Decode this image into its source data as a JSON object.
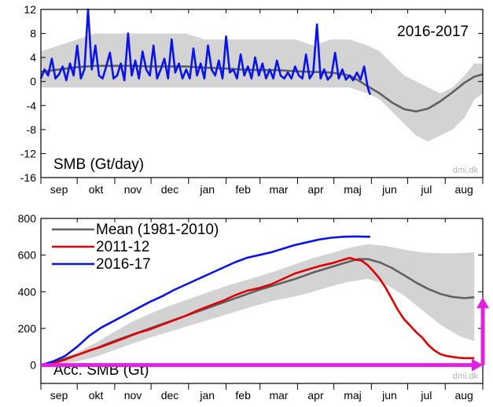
{
  "colors": {
    "band": "#d3d3d3",
    "mean": "#606060",
    "series_2011": "#e00000",
    "series_2016": "#0a14e6",
    "arrow": "#e022e0"
  },
  "chart_data": [
    {
      "type": "line",
      "title": "2016-2017",
      "ylabel": "SMB (Gt/day)",
      "watermark": "dmi.dk",
      "ylim": [
        -16,
        12
      ],
      "yticks": [
        -16,
        -12,
        -8,
        -4,
        0,
        4,
        8,
        12
      ],
      "months": [
        "sep",
        "okt",
        "nov",
        "dec",
        "jan",
        "feb",
        "mar",
        "apr",
        "maj",
        "jun",
        "jul",
        "aug"
      ],
      "x_unit": "day since 1 Sep",
      "xlim": [
        0,
        365
      ],
      "band": {
        "x": [
          0,
          15,
          30,
          45,
          60,
          75,
          90,
          105,
          120,
          135,
          150,
          165,
          180,
          195,
          210,
          225,
          240,
          255,
          270,
          280,
          290,
          300,
          310,
          320,
          330,
          340,
          350,
          358,
          365
        ],
        "upper": [
          5,
          6,
          7,
          8,
          8,
          8,
          8,
          8,
          8,
          7,
          7,
          7,
          7,
          7,
          7,
          6,
          7,
          7,
          6,
          5,
          3,
          1,
          0,
          -1,
          -2,
          -1,
          1,
          3,
          3
        ],
        "lower": [
          -1,
          -1,
          -1,
          -1,
          -1,
          -1,
          -1,
          -1,
          -1,
          -1,
          -1,
          -1,
          -1,
          -1,
          -1,
          -1,
          -1,
          -1,
          -2,
          -3,
          -5,
          -7,
          -9,
          -10,
          -9,
          -8,
          -6,
          -3,
          -2
        ]
      },
      "mean": {
        "x": [
          0,
          15,
          30,
          45,
          60,
          75,
          90,
          105,
          120,
          135,
          150,
          165,
          180,
          195,
          210,
          225,
          240,
          255,
          262,
          270,
          280,
          290,
          300,
          310,
          320,
          330,
          340,
          350,
          358,
          365
        ],
        "y": [
          1.6,
          2.0,
          2.4,
          2.6,
          2.6,
          2.6,
          2.5,
          2.5,
          2.5,
          2.3,
          2.2,
          2.0,
          1.9,
          1.9,
          1.7,
          1.6,
          1.5,
          1.0,
          0.2,
          -0.8,
          -2.0,
          -3.5,
          -4.6,
          -5.0,
          -4.5,
          -3.3,
          -1.8,
          -0.2,
          0.8,
          1.2
        ]
      },
      "series": [
        {
          "name": "2016-17",
          "x": [
            0,
            3,
            6,
            9,
            12,
            15,
            18,
            21,
            24,
            27,
            30,
            33,
            36,
            39,
            42,
            45,
            48,
            51,
            54,
            57,
            60,
            63,
            66,
            69,
            72,
            75,
            78,
            81,
            84,
            87,
            90,
            93,
            96,
            99,
            102,
            105,
            108,
            111,
            114,
            117,
            120,
            123,
            126,
            129,
            132,
            135,
            138,
            141,
            144,
            147,
            150,
            153,
            156,
            159,
            162,
            165,
            168,
            171,
            174,
            177,
            180,
            183,
            186,
            189,
            192,
            195,
            198,
            201,
            204,
            207,
            210,
            213,
            216,
            219,
            222,
            225,
            228,
            231,
            234,
            237,
            240,
            243,
            246,
            249,
            252,
            255,
            258,
            261,
            264,
            267,
            270,
            272
          ],
          "y": [
            0.5,
            2.0,
            1.0,
            3.8,
            0.5,
            1.2,
            2.5,
            0.2,
            3.0,
            1.0,
            6.0,
            0.5,
            2.0,
            12.0,
            2.0,
            6.0,
            1.0,
            0.5,
            2.5,
            4.8,
            0.5,
            1.0,
            3.0,
            0.2,
            8.0,
            1.0,
            3.5,
            0.5,
            5.0,
            2.0,
            1.0,
            6.0,
            0.5,
            2.0,
            3.8,
            0.5,
            7.0,
            1.5,
            3.0,
            0.5,
            2.0,
            0.5,
            5.5,
            1.0,
            3.0,
            0.5,
            6.0,
            2.0,
            1.0,
            3.5,
            0.5,
            7.5,
            1.5,
            2.0,
            0.5,
            4.5,
            1.0,
            2.5,
            0.5,
            4.0,
            1.0,
            3.0,
            0.5,
            2.0,
            0.5,
            3.5,
            1.0,
            0.5,
            1.5,
            0.5,
            2.5,
            1.0,
            0.5,
            4.5,
            0.5,
            1.5,
            9.5,
            0.5,
            2.0,
            0.3,
            1.0,
            4.8,
            0.5,
            2.0,
            0.3,
            1.0,
            0.2,
            1.5,
            0.3,
            2.5,
            -1.0,
            -2.2
          ]
        }
      ]
    },
    {
      "type": "line",
      "ylabel": "Acc. SMB (Gt)",
      "watermark": "dmi.dk",
      "ylim": [
        -100,
        800
      ],
      "yticks": [
        0,
        200,
        400,
        600,
        800
      ],
      "months": [
        "sep",
        "okt",
        "nov",
        "dec",
        "jan",
        "feb",
        "mar",
        "apr",
        "maj",
        "jun",
        "jul",
        "aug"
      ],
      "x_unit": "day since 1 Sep",
      "xlim": [
        0,
        365
      ],
      "legend": [
        "Mean (1981-2010)",
        "2011-12",
        "2016-17"
      ],
      "legend_position": "top-left",
      "band": {
        "x": [
          0,
          15,
          30,
          45,
          60,
          75,
          90,
          105,
          120,
          135,
          150,
          165,
          180,
          195,
          210,
          225,
          240,
          255,
          270,
          285,
          300,
          315,
          330,
          345,
          358
        ],
        "upper": [
          0,
          30,
          70,
          120,
          180,
          235,
          280,
          320,
          355,
          390,
          425,
          455,
          485,
          515,
          550,
          585,
          610,
          640,
          660,
          650,
          630,
          615,
          610,
          610,
          615
        ],
        "lower": [
          0,
          5,
          20,
          45,
          80,
          115,
          150,
          180,
          210,
          240,
          270,
          300,
          330,
          355,
          375,
          400,
          430,
          455,
          470,
          440,
          380,
          300,
          220,
          160,
          130
        ]
      },
      "mean": {
        "x": [
          0,
          15,
          30,
          45,
          60,
          75,
          90,
          105,
          120,
          135,
          150,
          165,
          180,
          195,
          210,
          225,
          240,
          255,
          262,
          270,
          280,
          290,
          300,
          310,
          320,
          330,
          340,
          350,
          358
        ],
        "y": [
          0,
          25,
          55,
          90,
          130,
          165,
          200,
          235,
          270,
          305,
          340,
          375,
          410,
          440,
          470,
          505,
          535,
          565,
          578,
          578,
          560,
          530,
          490,
          450,
          415,
          388,
          372,
          365,
          370
        ]
      },
      "series": [
        {
          "name": "2011-12",
          "x": [
            0,
            10,
            20,
            30,
            40,
            50,
            60,
            70,
            80,
            90,
            100,
            110,
            120,
            130,
            140,
            150,
            160,
            170,
            180,
            190,
            200,
            210,
            220,
            230,
            240,
            250,
            255,
            260,
            265,
            270,
            275,
            280,
            285,
            290,
            295,
            300,
            305,
            310,
            315,
            320,
            325,
            330,
            335,
            340,
            345,
            350,
            358
          ],
          "y": [
            0,
            10,
            30,
            55,
            80,
            100,
            125,
            150,
            175,
            195,
            220,
            245,
            270,
            300,
            325,
            350,
            380,
            405,
            420,
            440,
            470,
            500,
            520,
            540,
            555,
            575,
            585,
            575,
            570,
            545,
            510,
            470,
            420,
            360,
            300,
            250,
            215,
            180,
            150,
            110,
            80,
            60,
            50,
            45,
            40,
            38,
            38
          ]
        },
        {
          "name": "2016-17",
          "x": [
            0,
            10,
            20,
            30,
            40,
            50,
            60,
            70,
            80,
            90,
            100,
            110,
            120,
            130,
            140,
            150,
            160,
            170,
            180,
            190,
            200,
            210,
            220,
            230,
            240,
            250,
            260,
            270,
            272
          ],
          "y": [
            0,
            20,
            50,
            100,
            160,
            205,
            240,
            275,
            310,
            345,
            375,
            410,
            440,
            470,
            500,
            530,
            560,
            585,
            600,
            615,
            635,
            655,
            670,
            685,
            695,
            700,
            702,
            700,
            700
          ]
        }
      ],
      "annotation_arrows": [
        {
          "from": [
            0,
            0
          ],
          "to": [
            365,
            0
          ]
        },
        {
          "from": [
            365,
            0
          ],
          "to": [
            365,
            370
          ]
        }
      ]
    }
  ]
}
